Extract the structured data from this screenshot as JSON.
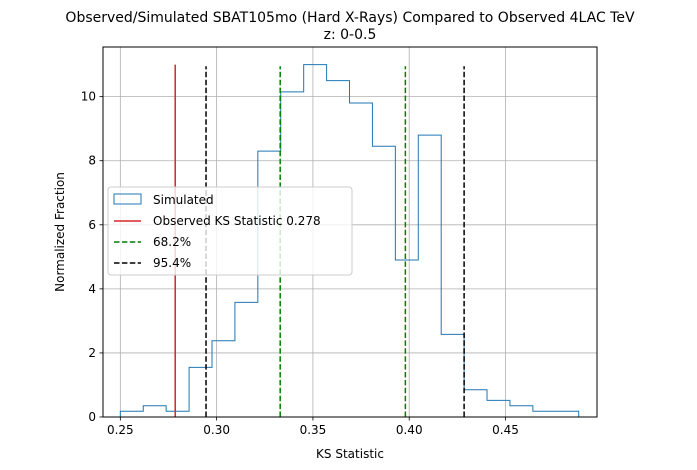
{
  "chart_data": {
    "type": "histogram",
    "title_line1": "Observed/Simulated SBAT105mo (Hard X-Rays) Compared to Observed 4LAC TeV",
    "title_line2": "z: 0-0.5",
    "xlabel": "KS Statistic",
    "ylabel": "Normalized Fraction",
    "xlim": [
      0.241,
      0.4975
    ],
    "ylim": [
      0,
      11.55
    ],
    "grid": true,
    "xticks": [
      0.25,
      0.3,
      0.35,
      0.4,
      0.45
    ],
    "xtick_labels": [
      "0.25",
      "0.30",
      "0.35",
      "0.40",
      "0.45"
    ],
    "yticks": [
      0,
      2,
      4,
      6,
      8,
      10
    ],
    "ytick_labels": [
      "0",
      "2",
      "4",
      "6",
      "8",
      "10"
    ],
    "histogram": {
      "name": "Simulated",
      "color": "#1f77b4",
      "bin_edges": [
        0.25,
        0.2619,
        0.2738,
        0.2857,
        0.2976,
        0.3095,
        0.3214,
        0.3333,
        0.3452,
        0.3571,
        0.369,
        0.3809,
        0.3928,
        0.4047,
        0.4166,
        0.4285,
        0.4404,
        0.4523,
        0.4642,
        0.4761,
        0.488
      ],
      "values": [
        0.18,
        0.35,
        0.18,
        1.55,
        2.38,
        3.58,
        8.3,
        10.15,
        11.0,
        10.5,
        9.8,
        8.45,
        4.9,
        8.8,
        2.58,
        0.85,
        0.52,
        0.35,
        0.18,
        0.18
      ]
    },
    "vlines": [
      {
        "name": "observed",
        "x": 0.2785,
        "ymax": 11.0,
        "color": "#d62728",
        "style": "solid"
      },
      {
        "name": "68-low",
        "x": 0.333,
        "ymax": 10.95,
        "color": "#008000",
        "style": "dashed"
      },
      {
        "name": "68-high",
        "x": 0.398,
        "ymax": 10.95,
        "color": "#008000",
        "style": "dashed"
      },
      {
        "name": "95-low",
        "x": 0.2945,
        "ymax": 10.95,
        "color": "#000000",
        "style": "dashed"
      },
      {
        "name": "95-high",
        "x": 0.4285,
        "ymax": 10.95,
        "color": "#000000",
        "style": "dashed"
      }
    ],
    "legend": {
      "position": "center-left",
      "entries": [
        {
          "label": "Simulated",
          "kind": "patch",
          "color": "#1f77b4"
        },
        {
          "label": "Observed KS Statistic 0.278",
          "kind": "line",
          "color": "#d62728",
          "style": "solid"
        },
        {
          "label": "68.2%",
          "kind": "line",
          "color": "#008000",
          "style": "dashed"
        },
        {
          "label": "95.4%",
          "kind": "line",
          "color": "#000000",
          "style": "dashed"
        }
      ]
    }
  }
}
